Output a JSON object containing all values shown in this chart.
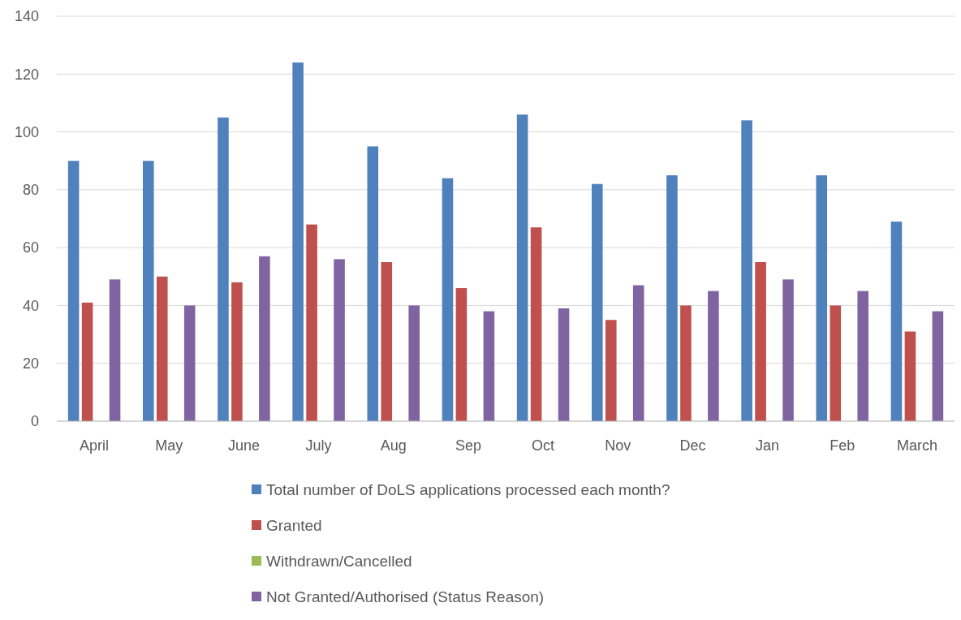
{
  "chart_data": {
    "type": "bar",
    "categories": [
      "April",
      "May",
      "June",
      "July",
      "Aug",
      "Sep",
      "Oct",
      "Nov",
      "Dec",
      "Jan",
      "Feb",
      "March"
    ],
    "series": [
      {
        "name": "Total number of DoLS applications processed each month?",
        "color": "#4f81bd",
        "values": [
          90,
          90,
          105,
          124,
          95,
          84,
          106,
          82,
          85,
          104,
          85,
          69
        ]
      },
      {
        "name": "Granted",
        "color": "#c0504d",
        "values": [
          41,
          50,
          48,
          68,
          55,
          46,
          67,
          35,
          40,
          55,
          40,
          31
        ]
      },
      {
        "name": "Withdrawn/Cancelled",
        "color": "#9bbb59",
        "values": [
          0,
          0,
          0,
          0,
          0,
          0,
          0,
          0,
          0,
          0,
          0,
          0
        ]
      },
      {
        "name": "Not Granted/Authorised (Status Reason)",
        "color": "#8064a2",
        "values": [
          49,
          40,
          57,
          56,
          40,
          38,
          39,
          47,
          45,
          49,
          45,
          38
        ]
      }
    ],
    "ylim": [
      0,
      140
    ],
    "yticks": [
      0,
      20,
      40,
      60,
      80,
      100,
      120,
      140
    ],
    "grid": "y",
    "legend": "bottom"
  }
}
